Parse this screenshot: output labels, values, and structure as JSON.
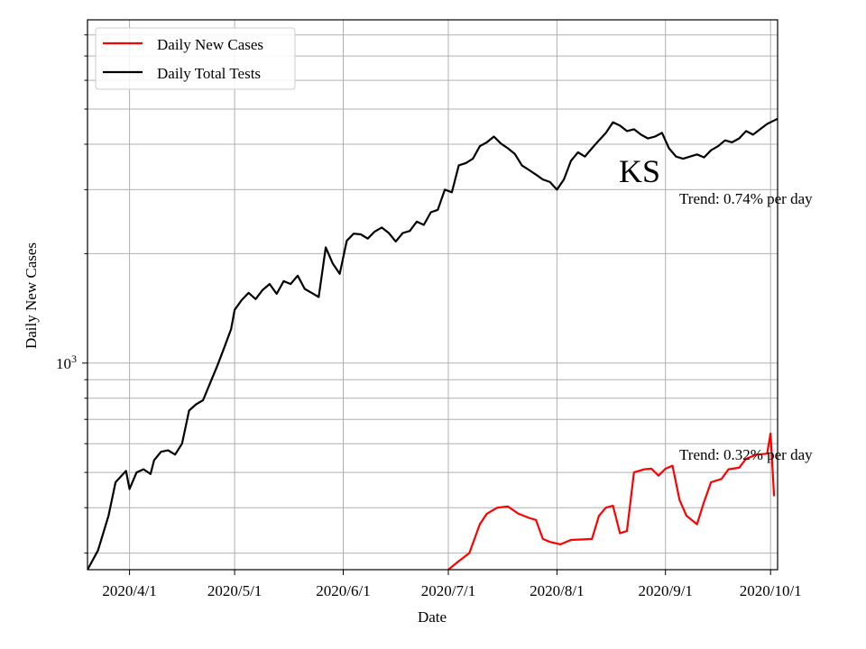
{
  "chart_data": {
    "type": "line",
    "title": "",
    "state_label": "KS",
    "xlabel": "Date",
    "ylabel": "Daily New Cases",
    "y_scale": "log",
    "ylim": [
      270,
      8800
    ],
    "y_major_tick": {
      "value": 1000,
      "base": "10",
      "exp": "3"
    },
    "xlim": [
      "2020-03-20",
      "2020-10-03"
    ],
    "x_ticks": [
      {
        "date": "2020-04-01",
        "label": "2020/4/1"
      },
      {
        "date": "2020-05-01",
        "label": "2020/5/1"
      },
      {
        "date": "2020-06-01",
        "label": "2020/6/1"
      },
      {
        "date": "2020-07-01",
        "label": "2020/7/1"
      },
      {
        "date": "2020-08-01",
        "label": "2020/8/1"
      },
      {
        "date": "2020-09-01",
        "label": "2020/9/1"
      },
      {
        "date": "2020-10-01",
        "label": "2020/10/1"
      }
    ],
    "grid": true,
    "legend": {
      "placement": "top-left"
    },
    "series": [
      {
        "name": "Daily New Cases",
        "color": "#ff0000",
        "points": [
          [
            "2020-07-01",
            270
          ],
          [
            "2020-07-04",
            285
          ],
          [
            "2020-07-07",
            300
          ],
          [
            "2020-07-10",
            360
          ],
          [
            "2020-07-12",
            385
          ],
          [
            "2020-07-15",
            400
          ],
          [
            "2020-07-18",
            403
          ],
          [
            "2020-07-21",
            385
          ],
          [
            "2020-07-24",
            375
          ],
          [
            "2020-07-26",
            370
          ],
          [
            "2020-07-28",
            328
          ],
          [
            "2020-07-30",
            322
          ],
          [
            "2020-08-02",
            317
          ],
          [
            "2020-08-05",
            326
          ],
          [
            "2020-08-08",
            327
          ],
          [
            "2020-08-11",
            328
          ],
          [
            "2020-08-13",
            380
          ],
          [
            "2020-08-15",
            400
          ],
          [
            "2020-08-17",
            405
          ],
          [
            "2020-08-19",
            340
          ],
          [
            "2020-08-21",
            345
          ],
          [
            "2020-08-23",
            500
          ],
          [
            "2020-08-26",
            510
          ],
          [
            "2020-08-28",
            512
          ],
          [
            "2020-08-30",
            490
          ],
          [
            "2020-09-01",
            512
          ],
          [
            "2020-09-03",
            522
          ],
          [
            "2020-09-05",
            420
          ],
          [
            "2020-09-07",
            380
          ],
          [
            "2020-09-10",
            360
          ],
          [
            "2020-09-12",
            415
          ],
          [
            "2020-09-14",
            470
          ],
          [
            "2020-09-17",
            480
          ],
          [
            "2020-09-19",
            510
          ],
          [
            "2020-09-22",
            515
          ],
          [
            "2020-09-24",
            545
          ],
          [
            "2020-09-27",
            560
          ],
          [
            "2020-09-30",
            563
          ],
          [
            "2020-10-01",
            640
          ],
          [
            "2020-10-02",
            430
          ]
        ]
      },
      {
        "name": "Daily Total Tests",
        "color": "#000000",
        "points": [
          [
            "2020-03-20",
            270
          ],
          [
            "2020-03-23",
            305
          ],
          [
            "2020-03-26",
            380
          ],
          [
            "2020-03-28",
            470
          ],
          [
            "2020-03-31",
            505
          ],
          [
            "2020-04-01",
            450
          ],
          [
            "2020-04-03",
            500
          ],
          [
            "2020-04-05",
            510
          ],
          [
            "2020-04-07",
            495
          ],
          [
            "2020-04-08",
            540
          ],
          [
            "2020-04-10",
            570
          ],
          [
            "2020-04-12",
            575
          ],
          [
            "2020-04-14",
            560
          ],
          [
            "2020-04-16",
            600
          ],
          [
            "2020-04-18",
            740
          ],
          [
            "2020-04-20",
            770
          ],
          [
            "2020-04-22",
            790
          ],
          [
            "2020-04-24",
            880
          ],
          [
            "2020-04-26",
            980
          ],
          [
            "2020-04-28",
            1100
          ],
          [
            "2020-04-30",
            1240
          ],
          [
            "2020-05-01",
            1400
          ],
          [
            "2020-05-03",
            1490
          ],
          [
            "2020-05-05",
            1560
          ],
          [
            "2020-05-07",
            1500
          ],
          [
            "2020-05-09",
            1590
          ],
          [
            "2020-05-11",
            1650
          ],
          [
            "2020-05-13",
            1550
          ],
          [
            "2020-05-15",
            1680
          ],
          [
            "2020-05-17",
            1650
          ],
          [
            "2020-05-19",
            1740
          ],
          [
            "2020-05-21",
            1600
          ],
          [
            "2020-05-23",
            1560
          ],
          [
            "2020-05-25",
            1520
          ],
          [
            "2020-05-27",
            2080
          ],
          [
            "2020-05-29",
            1880
          ],
          [
            "2020-05-31",
            1760
          ],
          [
            "2020-06-02",
            2170
          ],
          [
            "2020-06-04",
            2270
          ],
          [
            "2020-06-06",
            2260
          ],
          [
            "2020-06-08",
            2200
          ],
          [
            "2020-06-10",
            2300
          ],
          [
            "2020-06-12",
            2360
          ],
          [
            "2020-06-14",
            2280
          ],
          [
            "2020-06-16",
            2160
          ],
          [
            "2020-06-18",
            2280
          ],
          [
            "2020-06-20",
            2310
          ],
          [
            "2020-06-22",
            2450
          ],
          [
            "2020-06-24",
            2400
          ],
          [
            "2020-06-26",
            2600
          ],
          [
            "2020-06-28",
            2640
          ],
          [
            "2020-06-30",
            3000
          ],
          [
            "2020-07-02",
            2950
          ],
          [
            "2020-07-04",
            3500
          ],
          [
            "2020-07-06",
            3550
          ],
          [
            "2020-07-08",
            3650
          ],
          [
            "2020-07-10",
            3950
          ],
          [
            "2020-07-12",
            4050
          ],
          [
            "2020-07-14",
            4200
          ],
          [
            "2020-07-16",
            4020
          ],
          [
            "2020-07-18",
            3900
          ],
          [
            "2020-07-20",
            3760
          ],
          [
            "2020-07-22",
            3500
          ],
          [
            "2020-07-24",
            3400
          ],
          [
            "2020-07-26",
            3300
          ],
          [
            "2020-07-28",
            3200
          ],
          [
            "2020-07-30",
            3150
          ],
          [
            "2020-08-01",
            3000
          ],
          [
            "2020-08-03",
            3200
          ],
          [
            "2020-08-05",
            3600
          ],
          [
            "2020-08-07",
            3800
          ],
          [
            "2020-08-09",
            3700
          ],
          [
            "2020-08-11",
            3900
          ],
          [
            "2020-08-13",
            4100
          ],
          [
            "2020-08-15",
            4300
          ],
          [
            "2020-08-17",
            4600
          ],
          [
            "2020-08-19",
            4500
          ],
          [
            "2020-08-21",
            4350
          ],
          [
            "2020-08-23",
            4400
          ],
          [
            "2020-08-25",
            4250
          ],
          [
            "2020-08-27",
            4150
          ],
          [
            "2020-08-29",
            4200
          ],
          [
            "2020-08-31",
            4300
          ],
          [
            "2020-09-02",
            3900
          ],
          [
            "2020-09-04",
            3700
          ],
          [
            "2020-09-06",
            3650
          ],
          [
            "2020-09-08",
            3700
          ],
          [
            "2020-09-10",
            3750
          ],
          [
            "2020-09-12",
            3680
          ],
          [
            "2020-09-14",
            3850
          ],
          [
            "2020-09-16",
            3950
          ],
          [
            "2020-09-18",
            4100
          ],
          [
            "2020-09-20",
            4050
          ],
          [
            "2020-09-22",
            4150
          ],
          [
            "2020-09-24",
            4350
          ],
          [
            "2020-09-26",
            4250
          ],
          [
            "2020-09-28",
            4400
          ],
          [
            "2020-09-30",
            4550
          ],
          [
            "2020-10-02",
            4650
          ],
          [
            "2020-10-03",
            4700
          ]
        ]
      }
    ],
    "annotations": [
      {
        "text": "Trend: 0.74% per day",
        "series": "Daily Total Tests"
      },
      {
        "text": "Trend: 0.32% per day",
        "series": "Daily New Cases"
      }
    ]
  }
}
